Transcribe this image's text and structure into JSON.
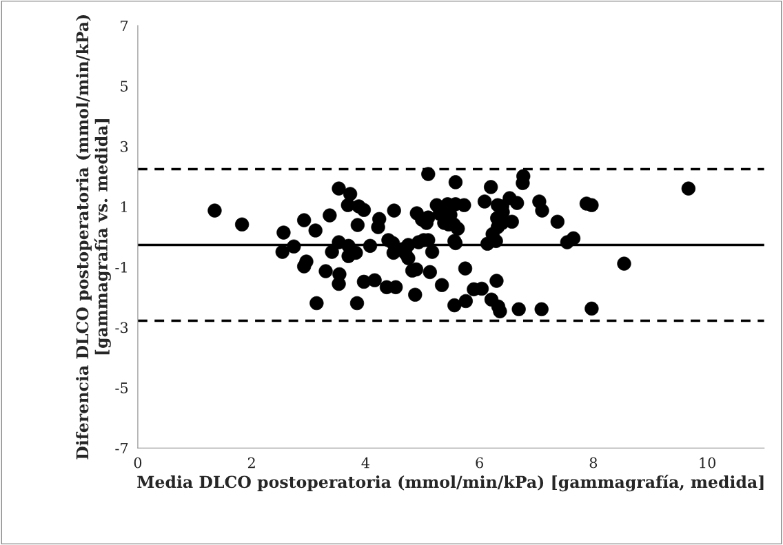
{
  "chart_data": {
    "type": "scatter",
    "xlabel": "Media DLCO postoperatoria (mmol/min/kPa) [gammagrafía, medida]",
    "ylabel": "Diferencia DLCO postoperatoria (mmol/min/kPa) [gammagrafía vs. medida]",
    "x": [
      1.35,
      1.83,
      2.54,
      2.56,
      2.74,
      2.92,
      2.92,
      2.96,
      3.12,
      3.14,
      3.3,
      3.37,
      3.41,
      3.53,
      3.53,
      3.54,
      3.53,
      3.69,
      3.73,
      3.7,
      3.7,
      3.83,
      3.86,
      3.88,
      3.97,
      3.97,
      3.85,
      4.08,
      4.16,
      4.22,
      4.24,
      4.4,
      4.37,
      4.48,
      4.5,
      4.49,
      4.53,
      4.65,
      4.7,
      4.75,
      4.75,
      4.82,
      4.89,
      4.87,
      4.9,
      4.93,
      4.99,
      5.02,
      5.1,
      5.07,
      5.1,
      5.13,
      5.1,
      5.17,
      5.25,
      5.3,
      5.38,
      5.44,
      5.49,
      5.34,
      5.46,
      5.55,
      5.58,
      5.58,
      5.56,
      5.62,
      5.56,
      5.58,
      5.73,
      5.75,
      5.76,
      5.9,
      6.04,
      6.09,
      6.2,
      6.14,
      6.23,
      6.21,
      6.29,
      6.3,
      6.32,
      6.31,
      6.4,
      6.4,
      6.32,
      6.41,
      6.33,
      6.36,
      6.53,
      6.57,
      6.66,
      6.69,
      6.77,
      6.76,
      7.05,
      7.09,
      7.1,
      7.37,
      7.54,
      7.65,
      7.88,
      7.97,
      7.97,
      8.54,
      9.67
    ],
    "series": [
      {
        "color": "#000000",
        "values": [
          0.87,
          0.41,
          -0.5,
          0.14,
          -0.32,
          0.55,
          -0.98,
          -0.82,
          0.21,
          -2.2,
          -1.14,
          0.71,
          -0.5,
          1.6,
          -0.18,
          -1.24,
          -1.56,
          1.05,
          1.42,
          -0.3,
          -0.64,
          -0.53,
          0.39,
          1.01,
          0.89,
          -1.49,
          -2.2,
          -0.3,
          -1.44,
          0.32,
          0.59,
          -0.11,
          -1.67,
          -0.21,
          0.87,
          -0.53,
          -1.67,
          -0.41,
          -0.55,
          -0.71,
          -0.27,
          -1.12,
          -1.08,
          -1.92,
          0.78,
          -0.18,
          0.57,
          -0.11,
          0.64,
          0.46,
          -0.11,
          -1.17,
          2.08,
          -0.5,
          1.05,
          0.76,
          0.46,
          1.08,
          0.73,
          -1.6,
          0.41,
          0.41,
          -0.21,
          1.08,
          -0.14,
          0.27,
          -2.27,
          1.81,
          1.05,
          -1.05,
          -2.13,
          -1.74,
          -1.72,
          1.17,
          1.65,
          -0.23,
          0.09,
          -2.08,
          -0.14,
          -1.46,
          1.05,
          0.62,
          0.46,
          1.01,
          0.32,
          0.82,
          -2.31,
          -2.47,
          1.28,
          0.5,
          1.12,
          -2.4,
          2.01,
          1.78,
          1.17,
          -2.4,
          0.87,
          0.5,
          -0.18,
          -0.05,
          1.1,
          1.05,
          -2.38,
          -0.89,
          1.6
        ]
      }
    ],
    "marker": "circle",
    "xlim": [
      0,
      11
    ],
    "xticks": [
      0,
      2,
      4,
      6,
      8,
      10
    ],
    "ylim": [
      -7,
      7
    ],
    "yticks": [
      -7,
      -5,
      -3,
      -1,
      1,
      3,
      5,
      7
    ],
    "grid": false,
    "legend": false,
    "ref_lines": [
      {
        "axis": "y",
        "value": 2.24,
        "color": "#000000",
        "line_style": "dashed"
      },
      {
        "axis": "y",
        "value": -0.27,
        "color": "#000000",
        "line_style": "solid"
      },
      {
        "axis": "y",
        "value": -2.78,
        "color": "#000000",
        "line_style": "dashed"
      }
    ]
  }
}
